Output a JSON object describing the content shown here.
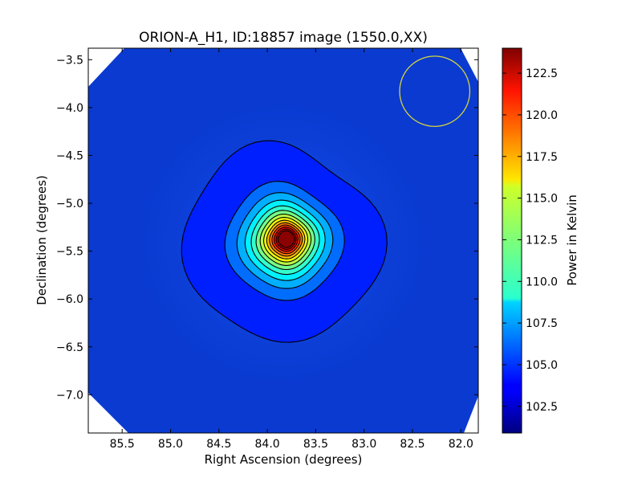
{
  "chart_data": {
    "type": "heatmap",
    "title": "ORION-A_H1, ID:18857 image (1550.0,XX)",
    "xlabel": "Right Ascension (degrees)",
    "ylabel": "Declination (degrees)",
    "colorbar_label": "Power in Kelvin",
    "x_axis_inverted": true,
    "xlim": [
      85.85,
      81.82
    ],
    "ylim": [
      -7.4,
      -3.38
    ],
    "x_ticks": [
      85.5,
      85.0,
      84.5,
      84.0,
      83.5,
      83.0,
      82.5,
      82.0
    ],
    "x_tick_labels": [
      "85.5",
      "85.0",
      "84.5",
      "84.0",
      "83.5",
      "83.0",
      "82.5",
      "82.0"
    ],
    "y_ticks": [
      -3.5,
      -4.0,
      -4.5,
      -5.0,
      -5.5,
      -6.0,
      -6.5,
      -7.0
    ],
    "y_tick_labels": [
      "−3.5",
      "−4.0",
      "−4.5",
      "−5.0",
      "−5.5",
      "−6.0",
      "−6.5",
      "−7.0"
    ],
    "colorbar_range": [
      100.9,
      124.0
    ],
    "colorbar_ticks": [
      102.5,
      105.0,
      107.5,
      110.0,
      112.5,
      115.0,
      117.5,
      120.0,
      122.5
    ],
    "colorbar_tick_labels": [
      "102.5",
      "105.0",
      "107.5",
      "110.0",
      "112.5",
      "115.0",
      "117.5",
      "120.0",
      "122.5"
    ],
    "colormap": "jet",
    "background_level": 103.2,
    "source": {
      "ra": 83.8,
      "dec": -5.37,
      "peak": 124.0
    },
    "contour_levels": [
      103.5,
      105.5,
      107.0,
      108.5,
      110.0,
      111.5,
      113.0,
      114.5,
      116.0,
      117.5,
      119.0,
      120.5,
      122.0,
      123.5
    ],
    "beam_circle": {
      "ra": 82.27,
      "dec": -3.83,
      "radius_deg": 0.37,
      "color": "#d4d440"
    },
    "corner_blank_color": "#ffffff",
    "contour_color": "#000000",
    "colors": {
      "low": "#00007f",
      "background": "#0a3ad0",
      "high": "#7f0000"
    }
  }
}
